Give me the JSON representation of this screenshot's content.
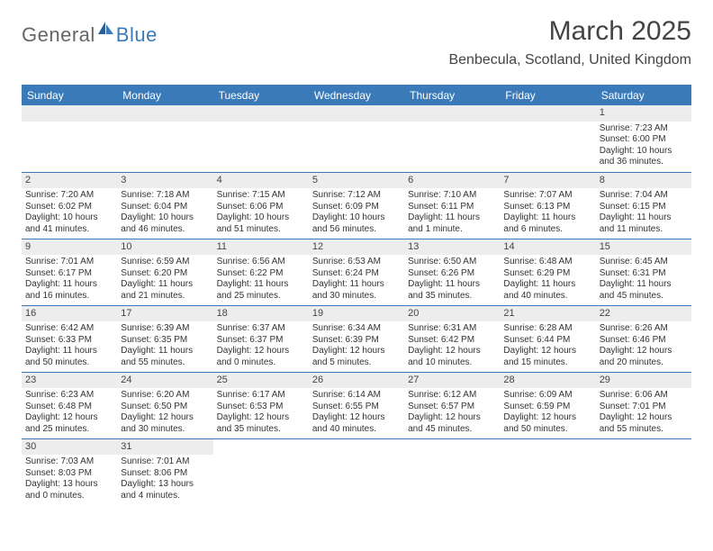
{
  "logo": {
    "part1": "General",
    "part2": "Blue"
  },
  "title": "March 2025",
  "location": "Benbecula, Scotland, United Kingdom",
  "colors": {
    "header_bg": "#3a7ab8",
    "header_fg": "#ffffff",
    "row_divider": "#3a7ab8",
    "daynum_bg": "#ededed",
    "text": "#333333",
    "logo_gray": "#666666",
    "logo_blue": "#3a7ab8",
    "page_bg": "#ffffff"
  },
  "typography": {
    "title_fontsize": 30,
    "location_fontsize": 16,
    "dayhead_fontsize": 12,
    "body_fontsize": 10,
    "logo_fontsize": 22
  },
  "calendar": {
    "columns": [
      "Sunday",
      "Monday",
      "Tuesday",
      "Wednesday",
      "Thursday",
      "Friday",
      "Saturday"
    ],
    "weeks": [
      [
        null,
        null,
        null,
        null,
        null,
        null,
        {
          "n": "1",
          "sunrise": "7:23 AM",
          "sunset": "6:00 PM",
          "daylight": "10 hours and 36 minutes."
        }
      ],
      [
        {
          "n": "2",
          "sunrise": "7:20 AM",
          "sunset": "6:02 PM",
          "daylight": "10 hours and 41 minutes."
        },
        {
          "n": "3",
          "sunrise": "7:18 AM",
          "sunset": "6:04 PM",
          "daylight": "10 hours and 46 minutes."
        },
        {
          "n": "4",
          "sunrise": "7:15 AM",
          "sunset": "6:06 PM",
          "daylight": "10 hours and 51 minutes."
        },
        {
          "n": "5",
          "sunrise": "7:12 AM",
          "sunset": "6:09 PM",
          "daylight": "10 hours and 56 minutes."
        },
        {
          "n": "6",
          "sunrise": "7:10 AM",
          "sunset": "6:11 PM",
          "daylight": "11 hours and 1 minute."
        },
        {
          "n": "7",
          "sunrise": "7:07 AM",
          "sunset": "6:13 PM",
          "daylight": "11 hours and 6 minutes."
        },
        {
          "n": "8",
          "sunrise": "7:04 AM",
          "sunset": "6:15 PM",
          "daylight": "11 hours and 11 minutes."
        }
      ],
      [
        {
          "n": "9",
          "sunrise": "7:01 AM",
          "sunset": "6:17 PM",
          "daylight": "11 hours and 16 minutes."
        },
        {
          "n": "10",
          "sunrise": "6:59 AM",
          "sunset": "6:20 PM",
          "daylight": "11 hours and 21 minutes."
        },
        {
          "n": "11",
          "sunrise": "6:56 AM",
          "sunset": "6:22 PM",
          "daylight": "11 hours and 25 minutes."
        },
        {
          "n": "12",
          "sunrise": "6:53 AM",
          "sunset": "6:24 PM",
          "daylight": "11 hours and 30 minutes."
        },
        {
          "n": "13",
          "sunrise": "6:50 AM",
          "sunset": "6:26 PM",
          "daylight": "11 hours and 35 minutes."
        },
        {
          "n": "14",
          "sunrise": "6:48 AM",
          "sunset": "6:29 PM",
          "daylight": "11 hours and 40 minutes."
        },
        {
          "n": "15",
          "sunrise": "6:45 AM",
          "sunset": "6:31 PM",
          "daylight": "11 hours and 45 minutes."
        }
      ],
      [
        {
          "n": "16",
          "sunrise": "6:42 AM",
          "sunset": "6:33 PM",
          "daylight": "11 hours and 50 minutes."
        },
        {
          "n": "17",
          "sunrise": "6:39 AM",
          "sunset": "6:35 PM",
          "daylight": "11 hours and 55 minutes."
        },
        {
          "n": "18",
          "sunrise": "6:37 AM",
          "sunset": "6:37 PM",
          "daylight": "12 hours and 0 minutes."
        },
        {
          "n": "19",
          "sunrise": "6:34 AM",
          "sunset": "6:39 PM",
          "daylight": "12 hours and 5 minutes."
        },
        {
          "n": "20",
          "sunrise": "6:31 AM",
          "sunset": "6:42 PM",
          "daylight": "12 hours and 10 minutes."
        },
        {
          "n": "21",
          "sunrise": "6:28 AM",
          "sunset": "6:44 PM",
          "daylight": "12 hours and 15 minutes."
        },
        {
          "n": "22",
          "sunrise": "6:26 AM",
          "sunset": "6:46 PM",
          "daylight": "12 hours and 20 minutes."
        }
      ],
      [
        {
          "n": "23",
          "sunrise": "6:23 AM",
          "sunset": "6:48 PM",
          "daylight": "12 hours and 25 minutes."
        },
        {
          "n": "24",
          "sunrise": "6:20 AM",
          "sunset": "6:50 PM",
          "daylight": "12 hours and 30 minutes."
        },
        {
          "n": "25",
          "sunrise": "6:17 AM",
          "sunset": "6:53 PM",
          "daylight": "12 hours and 35 minutes."
        },
        {
          "n": "26",
          "sunrise": "6:14 AM",
          "sunset": "6:55 PM",
          "daylight": "12 hours and 40 minutes."
        },
        {
          "n": "27",
          "sunrise": "6:12 AM",
          "sunset": "6:57 PM",
          "daylight": "12 hours and 45 minutes."
        },
        {
          "n": "28",
          "sunrise": "6:09 AM",
          "sunset": "6:59 PM",
          "daylight": "12 hours and 50 minutes."
        },
        {
          "n": "29",
          "sunrise": "6:06 AM",
          "sunset": "7:01 PM",
          "daylight": "12 hours and 55 minutes."
        }
      ],
      [
        {
          "n": "30",
          "sunrise": "7:03 AM",
          "sunset": "8:03 PM",
          "daylight": "13 hours and 0 minutes."
        },
        {
          "n": "31",
          "sunrise": "7:01 AM",
          "sunset": "8:06 PM",
          "daylight": "13 hours and 4 minutes."
        },
        null,
        null,
        null,
        null,
        null
      ]
    ],
    "labels": {
      "sunrise": "Sunrise:",
      "sunset": "Sunset:",
      "daylight": "Daylight:"
    }
  }
}
